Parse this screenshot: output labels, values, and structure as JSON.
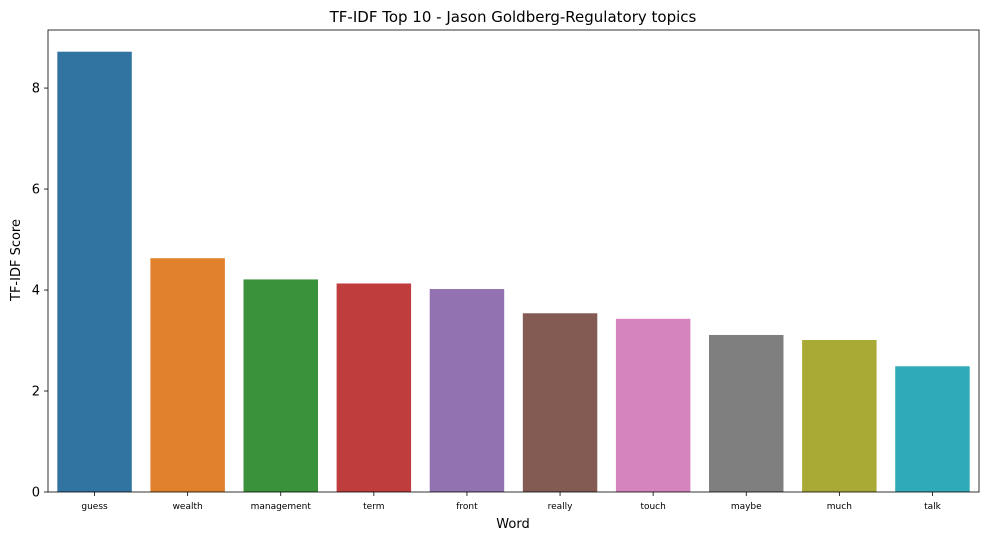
{
  "chart_data": {
    "type": "bar",
    "title": "TF-IDF Top 10 - Jason Goldberg-Regulatory topics",
    "xlabel": "Word",
    "ylabel": "TF-IDF Score",
    "categories": [
      "guess",
      "wealth",
      "management",
      "term",
      "front",
      "really",
      "touch",
      "maybe",
      "much",
      "talk"
    ],
    "values": [
      8.72,
      4.63,
      4.21,
      4.13,
      4.02,
      3.54,
      3.43,
      3.11,
      3.01,
      2.49
    ],
    "colors": [
      "#3274a1",
      "#e1812c",
      "#3a923a",
      "#c03d3e",
      "#9372b2",
      "#845b53",
      "#d684bd",
      "#7f7f7f",
      "#a9aa35",
      "#2eaab8"
    ],
    "ylim": [
      0,
      9.15
    ],
    "yticks": [
      0,
      2,
      4,
      6,
      8
    ],
    "grid": false,
    "legend": "none"
  }
}
